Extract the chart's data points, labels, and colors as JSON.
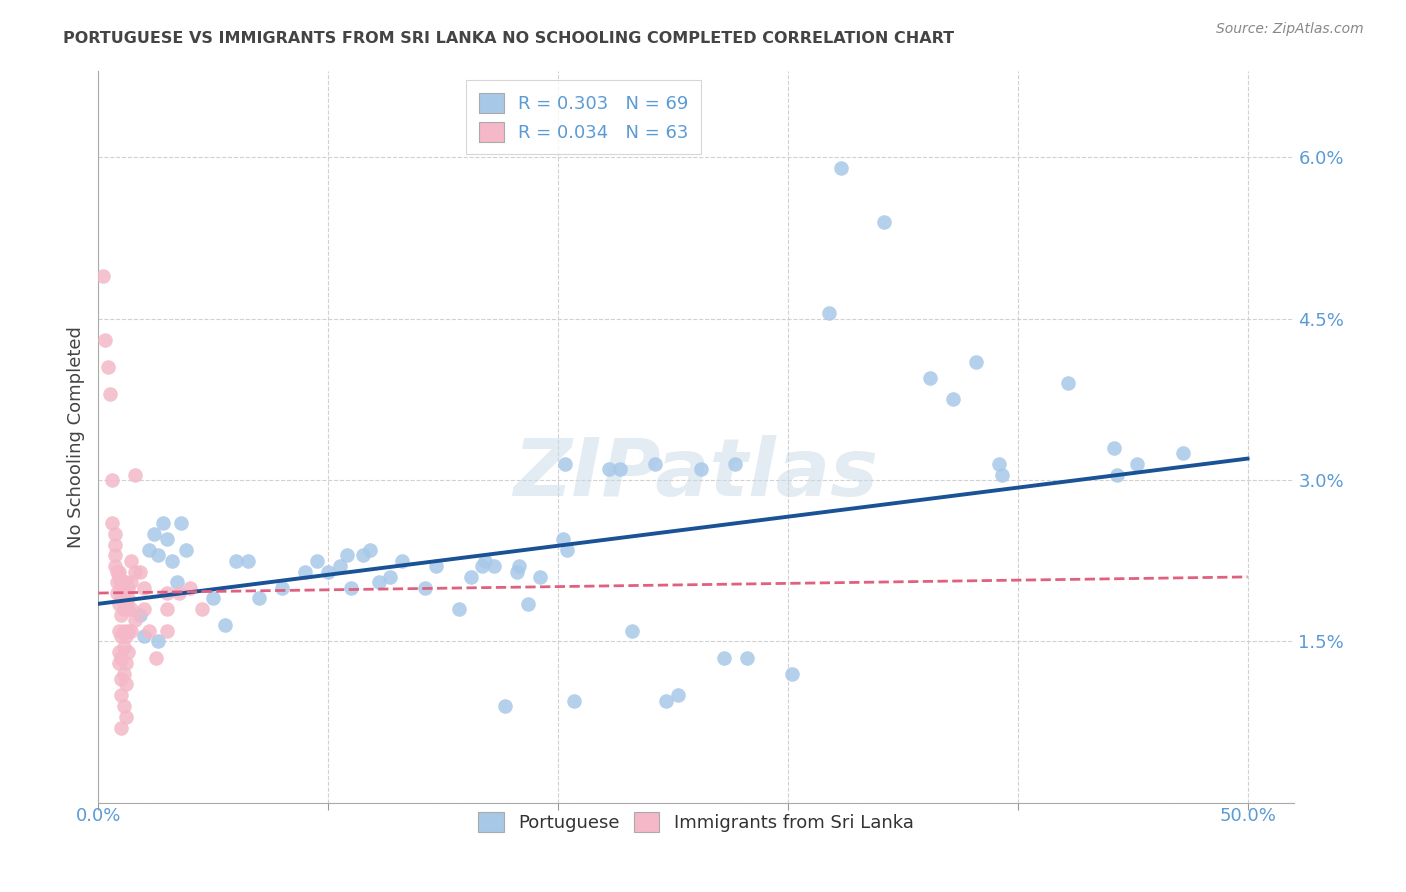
{
  "title": "PORTUGUESE VS IMMIGRANTS FROM SRI LANKA NO SCHOOLING COMPLETED CORRELATION CHART",
  "source": "Source: ZipAtlas.com",
  "ylabel": "No Schooling Completed",
  "yticks": [
    0.0,
    0.015,
    0.03,
    0.045,
    0.06
  ],
  "ytick_labels": [
    "",
    "1.5%",
    "3.0%",
    "4.5%",
    "6.0%"
  ],
  "xticks": [
    0.0,
    0.1,
    0.2,
    0.3,
    0.4,
    0.5
  ],
  "xtick_labels": [
    "",
    "",
    "",
    "",
    "",
    ""
  ],
  "xlim": [
    0.0,
    0.52
  ],
  "ylim": [
    0.0,
    0.068
  ],
  "watermark": "ZIPatlas",
  "legend_r1": "R = 0.303",
  "legend_n1": "N = 69",
  "legend_r2": "R = 0.034",
  "legend_n2": "N = 63",
  "blue_color": "#a8c8e8",
  "pink_color": "#f4b8c8",
  "line_blue": "#1a5296",
  "line_pink": "#e06080",
  "title_color": "#444444",
  "axis_label_color": "#5b9bd5",
  "bottom_label_color": "#333333",
  "blue_scatter": [
    [
      0.022,
      0.0235
    ],
    [
      0.024,
      0.025
    ],
    [
      0.026,
      0.023
    ],
    [
      0.028,
      0.026
    ],
    [
      0.03,
      0.0245
    ],
    [
      0.032,
      0.0225
    ],
    [
      0.034,
      0.0205
    ],
    [
      0.036,
      0.026
    ],
    [
      0.038,
      0.0235
    ],
    [
      0.018,
      0.0175
    ],
    [
      0.02,
      0.0155
    ],
    [
      0.026,
      0.015
    ],
    [
      0.05,
      0.019
    ],
    [
      0.055,
      0.0165
    ],
    [
      0.06,
      0.0225
    ],
    [
      0.065,
      0.0225
    ],
    [
      0.07,
      0.019
    ],
    [
      0.08,
      0.02
    ],
    [
      0.09,
      0.0215
    ],
    [
      0.095,
      0.0225
    ],
    [
      0.1,
      0.0215
    ],
    [
      0.105,
      0.022
    ],
    [
      0.108,
      0.023
    ],
    [
      0.11,
      0.02
    ],
    [
      0.115,
      0.023
    ],
    [
      0.118,
      0.0235
    ],
    [
      0.122,
      0.0205
    ],
    [
      0.127,
      0.021
    ],
    [
      0.132,
      0.0225
    ],
    [
      0.142,
      0.02
    ],
    [
      0.147,
      0.022
    ],
    [
      0.157,
      0.018
    ],
    [
      0.162,
      0.021
    ],
    [
      0.167,
      0.022
    ],
    [
      0.168,
      0.0225
    ],
    [
      0.172,
      0.022
    ],
    [
      0.177,
      0.009
    ],
    [
      0.182,
      0.0215
    ],
    [
      0.183,
      0.022
    ],
    [
      0.187,
      0.0185
    ],
    [
      0.192,
      0.021
    ],
    [
      0.202,
      0.0245
    ],
    [
      0.203,
      0.0315
    ],
    [
      0.204,
      0.0235
    ],
    [
      0.207,
      0.0095
    ],
    [
      0.222,
      0.031
    ],
    [
      0.227,
      0.031
    ],
    [
      0.232,
      0.016
    ],
    [
      0.242,
      0.0315
    ],
    [
      0.247,
      0.0095
    ],
    [
      0.252,
      0.01
    ],
    [
      0.262,
      0.031
    ],
    [
      0.272,
      0.0135
    ],
    [
      0.277,
      0.0315
    ],
    [
      0.282,
      0.0135
    ],
    [
      0.302,
      0.012
    ],
    [
      0.318,
      0.0455
    ],
    [
      0.323,
      0.059
    ],
    [
      0.342,
      0.054
    ],
    [
      0.362,
      0.0395
    ],
    [
      0.372,
      0.0375
    ],
    [
      0.382,
      0.041
    ],
    [
      0.392,
      0.0315
    ],
    [
      0.393,
      0.0305
    ],
    [
      0.422,
      0.039
    ],
    [
      0.442,
      0.033
    ],
    [
      0.443,
      0.0305
    ],
    [
      0.452,
      0.0315
    ],
    [
      0.472,
      0.0325
    ]
  ],
  "pink_scatter": [
    [
      0.002,
      0.049
    ],
    [
      0.003,
      0.043
    ],
    [
      0.004,
      0.0405
    ],
    [
      0.005,
      0.038
    ],
    [
      0.006,
      0.03
    ],
    [
      0.006,
      0.026
    ],
    [
      0.007,
      0.025
    ],
    [
      0.007,
      0.024
    ],
    [
      0.007,
      0.023
    ],
    [
      0.007,
      0.022
    ],
    [
      0.008,
      0.0215
    ],
    [
      0.008,
      0.0205
    ],
    [
      0.008,
      0.0195
    ],
    [
      0.009,
      0.0215
    ],
    [
      0.009,
      0.021
    ],
    [
      0.009,
      0.0185
    ],
    [
      0.009,
      0.016
    ],
    [
      0.009,
      0.014
    ],
    [
      0.009,
      0.013
    ],
    [
      0.01,
      0.0205
    ],
    [
      0.01,
      0.02
    ],
    [
      0.01,
      0.019
    ],
    [
      0.01,
      0.0175
    ],
    [
      0.01,
      0.0155
    ],
    [
      0.01,
      0.0135
    ],
    [
      0.01,
      0.0115
    ],
    [
      0.01,
      0.01
    ],
    [
      0.01,
      0.007
    ],
    [
      0.011,
      0.0195
    ],
    [
      0.011,
      0.018
    ],
    [
      0.011,
      0.016
    ],
    [
      0.011,
      0.0145
    ],
    [
      0.011,
      0.012
    ],
    [
      0.011,
      0.009
    ],
    [
      0.012,
      0.0205
    ],
    [
      0.012,
      0.0185
    ],
    [
      0.012,
      0.0155
    ],
    [
      0.012,
      0.013
    ],
    [
      0.012,
      0.011
    ],
    [
      0.012,
      0.008
    ],
    [
      0.013,
      0.02
    ],
    [
      0.013,
      0.019
    ],
    [
      0.013,
      0.018
    ],
    [
      0.013,
      0.016
    ],
    [
      0.013,
      0.014
    ],
    [
      0.014,
      0.0225
    ],
    [
      0.014,
      0.0205
    ],
    [
      0.014,
      0.018
    ],
    [
      0.014,
      0.016
    ],
    [
      0.016,
      0.0305
    ],
    [
      0.016,
      0.0215
    ],
    [
      0.016,
      0.017
    ],
    [
      0.018,
      0.0215
    ],
    [
      0.02,
      0.02
    ],
    [
      0.02,
      0.018
    ],
    [
      0.022,
      0.016
    ],
    [
      0.025,
      0.0135
    ],
    [
      0.03,
      0.0195
    ],
    [
      0.03,
      0.018
    ],
    [
      0.03,
      0.016
    ],
    [
      0.035,
      0.0195
    ],
    [
      0.04,
      0.02
    ],
    [
      0.045,
      0.018
    ]
  ],
  "blue_line_x": [
    0.0,
    0.5
  ],
  "blue_line_y": [
    0.0185,
    0.032
  ],
  "pink_line_x": [
    0.0,
    0.5
  ],
  "pink_line_y": [
    0.0195,
    0.021
  ]
}
